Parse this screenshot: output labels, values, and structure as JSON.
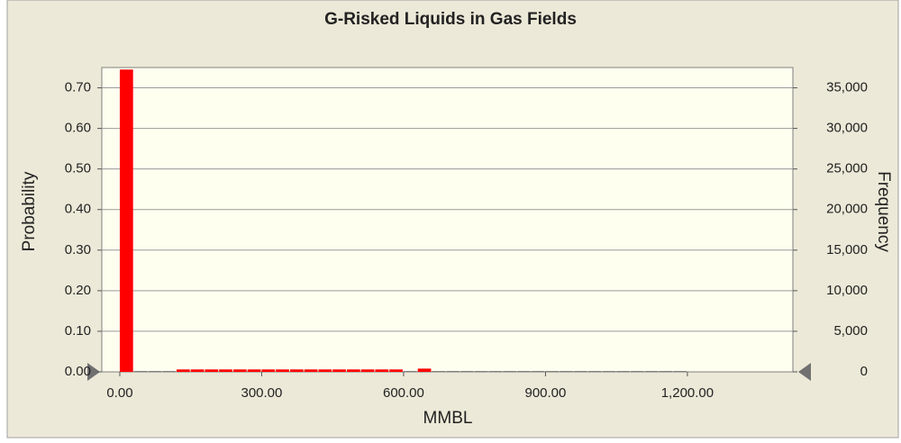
{
  "chart_data": {
    "type": "histogram",
    "title": "G-Risked Liquids in Gas Fields",
    "x_label": "MMBL",
    "y_label": "Probability",
    "y2_label": "Frequency",
    "bins": [
      0,
      30,
      60,
      90,
      120,
      150,
      180,
      210,
      240,
      270,
      300,
      330,
      360,
      390,
      420,
      450,
      480,
      510,
      540,
      570,
      600,
      630,
      660,
      690,
      720,
      750,
      780,
      810,
      840,
      870,
      900,
      930,
      960,
      990,
      1020,
      1050,
      1080,
      1110,
      1140,
      1170,
      1200
    ],
    "values": [
      0.745,
      0,
      0.002,
      0.002,
      0.006,
      0.006,
      0.006,
      0.006,
      0.006,
      0.006,
      0.006,
      0.006,
      0.006,
      0.006,
      0.006,
      0.006,
      0.006,
      0.006,
      0.006,
      0.006,
      0.002,
      0.008,
      0.002,
      0.002,
      0.002,
      0.002,
      0.002,
      0.002,
      0.002,
      0.002,
      0.002,
      0.002,
      0.002,
      0.002,
      0.002,
      0.002,
      0.002,
      0.002,
      0.002,
      0.001
    ],
    "colors": [
      "#ff0000",
      "#808080",
      "#808080",
      "#808080",
      "#ff0000",
      "#ff0000",
      "#ff0000",
      "#ff0000",
      "#ff0000",
      "#ff0000",
      "#ff0000",
      "#ff0000",
      "#ff0000",
      "#ff0000",
      "#ff0000",
      "#ff0000",
      "#ff0000",
      "#ff0000",
      "#ff0000",
      "#ff0000",
      "#808080",
      "#ff0000",
      "#808080",
      "#808080",
      "#808080",
      "#808080",
      "#808080",
      "#808080",
      "#808080",
      "#808080",
      "#808080",
      "#808080",
      "#808080",
      "#808080",
      "#808080",
      "#808080",
      "#808080",
      "#808080",
      "#808080",
      "#808080"
    ],
    "xlim": [
      -38,
      1423
    ],
    "xticks": [
      {
        "value": 0,
        "label": "0.00"
      },
      {
        "value": 300,
        "label": "300.00"
      },
      {
        "value": 600,
        "label": "600.00"
      },
      {
        "value": 900,
        "label": "900.00"
      },
      {
        "value": 1200,
        "label": "1,200.00"
      }
    ],
    "ylim": [
      0,
      0.75
    ],
    "yticks": [
      {
        "value": 0,
        "label": "0.00"
      },
      {
        "value": 0.1,
        "label": "0.10"
      },
      {
        "value": 0.2,
        "label": "0.20"
      },
      {
        "value": 0.3,
        "label": "0.30"
      },
      {
        "value": 0.4,
        "label": "0.40"
      },
      {
        "value": 0.5,
        "label": "0.50"
      },
      {
        "value": 0.6,
        "label": "0.60"
      },
      {
        "value": 0.7,
        "label": "0.70"
      }
    ],
    "y2lim": [
      0,
      37500
    ],
    "y2ticks": [
      0,
      {
        "value": 5000,
        "label": "5,000"
      },
      {
        "value": 10000,
        "label": "10,000"
      },
      {
        "value": 15000,
        "label": "15,000"
      },
      {
        "value": 20000,
        "label": "20,000"
      },
      {
        "value": 25000,
        "label": "25,000"
      },
      {
        "value": 30000,
        "label": "30,000"
      },
      {
        "value": 35000,
        "label": "35,000"
      }
    ],
    "grid": true
  }
}
